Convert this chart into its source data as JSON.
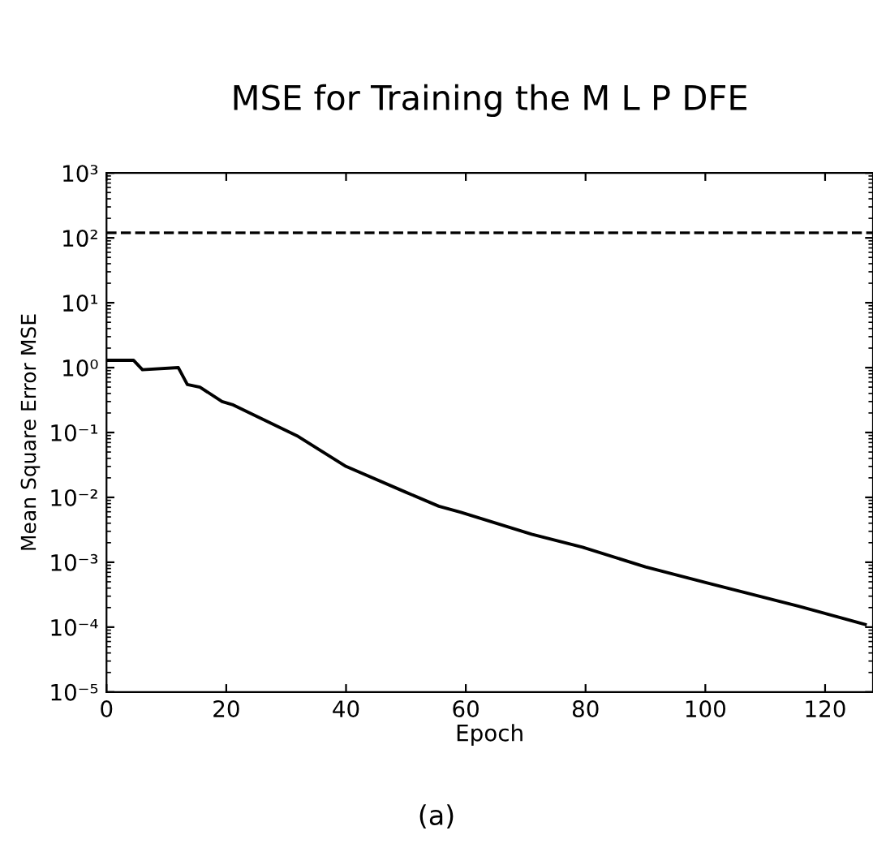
{
  "chart_data": {
    "type": "line",
    "title": "MSE for Training the M L P DFE",
    "xlabel": "Epoch",
    "ylabel": "Mean Square Error MSE",
    "log": "y",
    "grid": false,
    "legend": false,
    "marker": "none",
    "line_style": "solid",
    "x": [
      0,
      4.5,
      6,
      12,
      13.5,
      15.6,
      19.3,
      21,
      32,
      40,
      50,
      55.5,
      59.2,
      71,
      79.5,
      90,
      100.3,
      115.6,
      126.7
    ],
    "series": [
      {
        "color": "#000000",
        "values": [
          1.3,
          1.3,
          0.93,
          1.0,
          0.55,
          0.5,
          0.3,
          0.27,
          0.087,
          0.03,
          0.012,
          0.0073,
          0.0059,
          0.0027,
          0.0017,
          0.00085,
          0.00048,
          0.00021,
          0.00011
        ]
      }
    ],
    "ref_lines": [
      {
        "axis": "y",
        "value": 120,
        "line_style": "dashed",
        "color": "#000000"
      }
    ],
    "xlim": [
      0,
      128
    ],
    "xticks": [
      0,
      20,
      40,
      60,
      80,
      100,
      120
    ],
    "ylim": [
      1e-05,
      1000
    ],
    "yticks": [
      {
        "value": 1e-05,
        "label": "10⁻⁵"
      },
      {
        "value": 0.0001,
        "label": "10⁻⁴"
      },
      {
        "value": 0.001,
        "label": "10⁻³"
      },
      {
        "value": 0.01,
        "label": "10⁻²"
      },
      {
        "value": 0.1,
        "label": "10⁻¹"
      },
      {
        "value": 1,
        "label": "10⁰"
      },
      {
        "value": 10,
        "label": "10¹"
      },
      {
        "value": 100,
        "label": "10²"
      },
      {
        "value": 1000,
        "label": "10³"
      }
    ],
    "annotations": [
      "(a)"
    ]
  }
}
